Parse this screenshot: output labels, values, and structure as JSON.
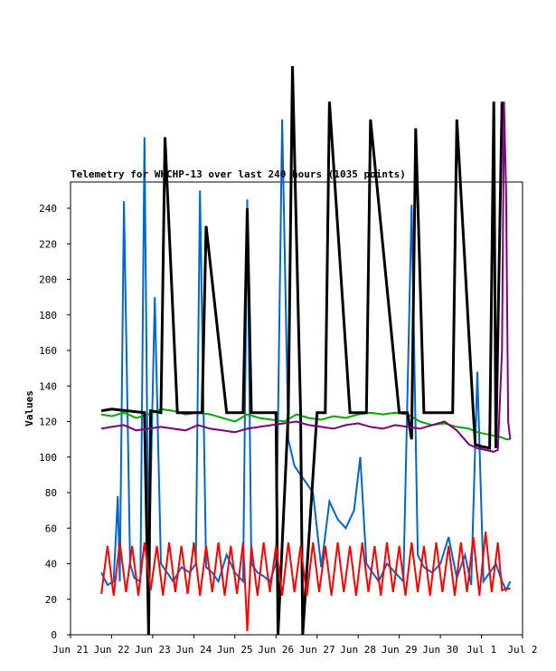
{
  "chart_data": {
    "type": "line",
    "title": "Telemetry for WHCHP-13 over last 240 hours (1035 points)",
    "xlabel": "",
    "ylabel": "Values",
    "ylim": [
      0,
      255
    ],
    "yticks": [
      0,
      20,
      40,
      60,
      80,
      100,
      120,
      140,
      160,
      180,
      200,
      220,
      240
    ],
    "xticks": [
      {
        "label": "Jun 21",
        "day": 21
      },
      {
        "label": "Jun 22",
        "day": 22
      },
      {
        "label": "Jun 23",
        "day": 23
      },
      {
        "label": "Jun 24",
        "day": 24
      },
      {
        "label": "Jun 25",
        "day": 25
      },
      {
        "label": "Jun 26",
        "day": 26
      },
      {
        "label": "Jun 27",
        "day": 27
      },
      {
        "label": "Jun 28",
        "day": 28
      },
      {
        "label": "Jun 29",
        "day": 29
      },
      {
        "label": "Jun 30",
        "day": 30
      },
      {
        "label": "Jul 1",
        "day": 31
      },
      {
        "label": "Jul 2",
        "day": 32
      }
    ],
    "grid": false,
    "series": [
      {
        "color": "#0066cc",
        "x": [
          21.75,
          21.9,
          22.05,
          22.15,
          22.2,
          22.3,
          22.45,
          22.55,
          22.7,
          22.8,
          22.9,
          23.05,
          23.2,
          23.35,
          23.5,
          23.7,
          23.9,
          24.05,
          24.15,
          24.3,
          24.45,
          24.6,
          24.8,
          25.0,
          25.2,
          25.3,
          25.4,
          25.55,
          25.7,
          25.85,
          26.0,
          26.15,
          26.3,
          26.45,
          26.6,
          26.75,
          26.9,
          27.1,
          27.3,
          27.5,
          27.7,
          27.9,
          28.05,
          28.2,
          28.35,
          28.5,
          28.7,
          28.9,
          29.1,
          29.3,
          29.45,
          29.6,
          29.8,
          30.0,
          30.2,
          30.4,
          30.6,
          30.75,
          30.9,
          31.05,
          31.2,
          31.35,
          31.5,
          31.6,
          31.7
        ],
        "values": [
          35,
          28,
          30,
          78,
          30,
          244,
          40,
          32,
          30,
          280,
          32,
          190,
          40,
          35,
          30,
          38,
          35,
          40,
          250,
          38,
          35,
          30,
          45,
          35,
          30,
          245,
          40,
          35,
          33,
          30,
          40,
          290,
          110,
          95,
          90,
          85,
          80,
          38,
          75,
          65,
          60,
          70,
          100,
          40,
          35,
          30,
          40,
          35,
          30,
          242,
          45,
          38,
          35,
          40,
          55,
          32,
          45,
          28,
          148,
          30,
          35,
          40,
          30,
          25,
          30
        ]
      },
      {
        "color": "#00aa00",
        "x": [
          21.75,
          22.0,
          22.3,
          22.6,
          22.9,
          23.2,
          23.5,
          23.8,
          24.1,
          24.4,
          24.7,
          25.0,
          25.3,
          25.6,
          25.9,
          26.2,
          26.5,
          26.8,
          27.1,
          27.4,
          27.7,
          28.0,
          28.3,
          28.6,
          28.9,
          29.2,
          29.5,
          29.8,
          30.1,
          30.4,
          30.7,
          30.9,
          31.1,
          31.3,
          31.5,
          31.6,
          31.7
        ],
        "values": [
          124,
          123,
          125,
          122,
          124,
          127,
          126,
          124,
          125,
          124,
          122,
          120,
          124,
          122,
          121,
          120,
          124,
          122,
          121,
          123,
          122,
          124,
          125,
          124,
          125,
          124,
          120,
          118,
          119,
          117,
          116,
          114,
          113,
          112,
          111,
          110,
          110
        ]
      },
      {
        "color": "#000000",
        "x": [
          21.75,
          22.0,
          22.4,
          22.8,
          22.9,
          22.95,
          23.2,
          23.3,
          23.6,
          24.0,
          24.2,
          24.3,
          24.8,
          25.2,
          25.3,
          25.4,
          26.0,
          26.05,
          26.3,
          26.4,
          26.6,
          26.65,
          27.0,
          27.2,
          27.3,
          27.8,
          28.2,
          28.3,
          29.0,
          29.2,
          29.3,
          29.4,
          29.6,
          30.0,
          30.3,
          30.4,
          30.8,
          30.85,
          31.0,
          31.2,
          31.3,
          31.35,
          31.5
        ],
        "values": [
          126,
          127,
          126,
          125,
          0,
          126,
          125,
          280,
          125,
          125,
          125,
          230,
          125,
          125,
          240,
          125,
          125,
          0,
          125,
          320,
          125,
          0,
          125,
          125,
          300,
          125,
          125,
          290,
          125,
          125,
          110,
          285,
          125,
          125,
          125,
          290,
          125,
          107,
          106,
          105,
          300,
          105,
          300
        ]
      },
      {
        "color": "#7f007f",
        "x": [
          21.75,
          22.0,
          22.3,
          22.6,
          22.9,
          23.2,
          23.5,
          23.8,
          24.1,
          24.4,
          24.7,
          25.0,
          25.3,
          25.6,
          25.9,
          26.2,
          26.5,
          26.8,
          27.1,
          27.4,
          27.7,
          28.0,
          28.3,
          28.6,
          28.9,
          29.2,
          29.5,
          29.8,
          30.1,
          30.4,
          30.7,
          30.9,
          31.1,
          31.3,
          31.4,
          31.5,
          31.55,
          31.6,
          31.65,
          31.7
        ],
        "values": [
          116,
          117,
          118,
          115,
          116,
          117,
          116,
          115,
          118,
          116,
          115,
          114,
          116,
          117,
          118,
          119,
          120,
          118,
          117,
          116,
          118,
          119,
          117,
          116,
          118,
          117,
          116,
          118,
          120,
          115,
          107,
          105,
          104,
          103,
          104,
          160,
          300,
          250,
          120,
          110
        ]
      },
      {
        "color": "#ff0000",
        "x": [
          21.75,
          21.9,
          22.05,
          22.2,
          22.35,
          22.5,
          22.65,
          22.8,
          22.95,
          23.1,
          23.25,
          23.4,
          23.55,
          23.7,
          23.85,
          24.0,
          24.15,
          24.3,
          24.45,
          24.6,
          24.75,
          24.9,
          25.05,
          25.2,
          25.3,
          25.4,
          25.55,
          25.7,
          25.85,
          26.0,
          26.15,
          26.3,
          26.45,
          26.6,
          26.75,
          26.9,
          27.05,
          27.2,
          27.35,
          27.5,
          27.65,
          27.8,
          27.95,
          28.1,
          28.25,
          28.4,
          28.55,
          28.7,
          28.85,
          29.0,
          29.15,
          29.3,
          29.45,
          29.6,
          29.75,
          29.9,
          30.05,
          30.2,
          30.35,
          30.5,
          30.65,
          30.8,
          30.95,
          31.1,
          31.25,
          31.4,
          31.5,
          31.6,
          31.7
        ],
        "values": [
          23,
          50,
          22,
          52,
          24,
          50,
          22,
          52,
          25,
          50,
          22,
          52,
          24,
          50,
          23,
          52,
          22,
          50,
          24,
          52,
          22,
          50,
          23,
          52,
          2,
          50,
          22,
          52,
          24,
          50,
          22,
          52,
          24,
          50,
          22,
          52,
          24,
          50,
          22,
          52,
          24,
          50,
          22,
          52,
          24,
          50,
          22,
          52,
          24,
          50,
          22,
          52,
          24,
          50,
          22,
          52,
          24,
          50,
          22,
          52,
          24,
          55,
          22,
          58,
          24,
          52,
          25,
          26,
          26
        ]
      }
    ]
  }
}
